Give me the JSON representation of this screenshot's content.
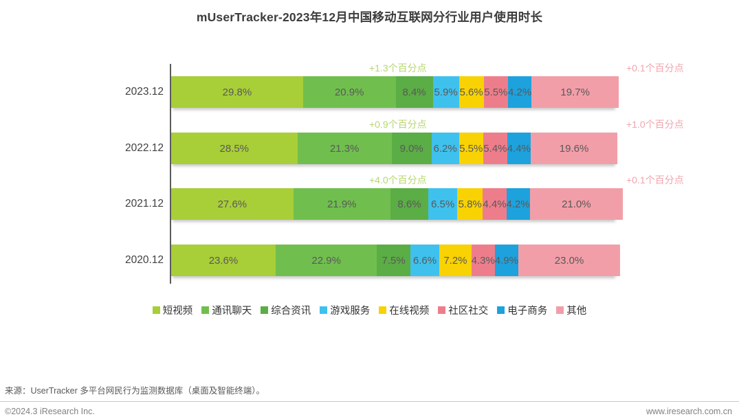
{
  "title": "mUserTracker-2023年12月中国移动互联网分行业用户使用时长",
  "chart_data": {
    "type": "bar",
    "orientation": "horizontal-stacked",
    "unit": "%",
    "xlim": [
      0,
      100
    ],
    "grid": false,
    "legend_position": "bottom",
    "categories": [
      "2023.12",
      "2022.12",
      "2021.12",
      "2020.12"
    ],
    "series": [
      {
        "name": "短视频",
        "color": "#a8ce38",
        "values": [
          29.8,
          28.5,
          27.6,
          23.6
        ]
      },
      {
        "name": "通讯聊天",
        "color": "#70bf4e",
        "values": [
          20.9,
          21.3,
          21.9,
          22.9
        ]
      },
      {
        "name": "综合资讯",
        "color": "#5bad45",
        "values": [
          8.4,
          9.0,
          8.6,
          7.5
        ]
      },
      {
        "name": "游戏服务",
        "color": "#3fc1ee",
        "values": [
          5.9,
          6.2,
          6.5,
          6.6
        ]
      },
      {
        "name": "在线视频",
        "color": "#f8d203",
        "values": [
          5.6,
          5.5,
          5.8,
          7.2
        ]
      },
      {
        "name": "社区社交",
        "color": "#ee7d8b",
        "values": [
          5.5,
          5.4,
          4.4,
          4.3
        ]
      },
      {
        "name": "电子商务",
        "color": "#1da2dd",
        "values": [
          4.2,
          4.4,
          4.2,
          4.9
        ]
      },
      {
        "name": "其他",
        "color": "#f29ea8",
        "values": [
          19.7,
          19.6,
          21.0,
          23.0
        ]
      }
    ],
    "annotations": [
      {
        "green": "+1.3个百分点",
        "pink": "+0.1个百分点"
      },
      {
        "green": "+0.9个百分点",
        "pink": "+1.0个百分点"
      },
      {
        "green": "+4.0个百分点",
        "pink": "+0.1个百分点"
      },
      null
    ]
  },
  "colors": {
    "annotation_green": "#b7d670",
    "annotation_pink": "#f2a3ad",
    "axis_line": "#5a5a5a",
    "value_text": "#595959"
  },
  "footer": {
    "source": "来源：UserTracker 多平台网民行为监测数据库（桌面及智能终端）。",
    "copyright": "©2024.3 iResearch Inc.",
    "website": "www.iresearch.com.cn"
  }
}
